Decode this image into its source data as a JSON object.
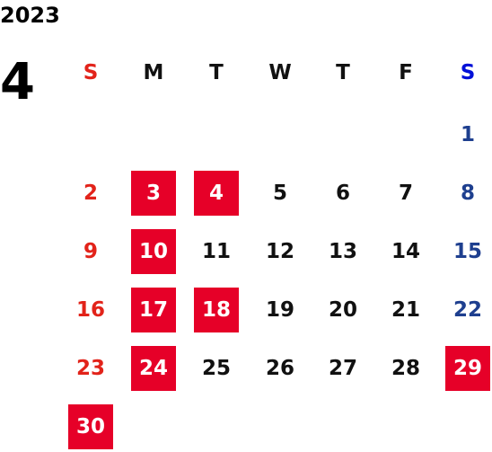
{
  "year": "2023",
  "month": "4",
  "colors": {
    "sunday": "#e2231a",
    "saturday": "#1e3f8f",
    "saturday_header": "#0010d8",
    "weekday": "#111111",
    "holiday_bg": "#e60028",
    "holiday_text": "#ffffff"
  },
  "weekdays": [
    "S",
    "M",
    "T",
    "W",
    "T",
    "F",
    "S"
  ],
  "weeks": [
    [
      null,
      null,
      null,
      null,
      null,
      null,
      {
        "d": "1"
      }
    ],
    [
      {
        "d": "2"
      },
      {
        "d": "3",
        "hl": true
      },
      {
        "d": "4",
        "hl": true
      },
      {
        "d": "5"
      },
      {
        "d": "6"
      },
      {
        "d": "7"
      },
      {
        "d": "8"
      }
    ],
    [
      {
        "d": "9"
      },
      {
        "d": "10",
        "hl": true
      },
      {
        "d": "11"
      },
      {
        "d": "12"
      },
      {
        "d": "13"
      },
      {
        "d": "14"
      },
      {
        "d": "15"
      }
    ],
    [
      {
        "d": "16"
      },
      {
        "d": "17",
        "hl": true
      },
      {
        "d": "18",
        "hl": true
      },
      {
        "d": "19"
      },
      {
        "d": "20"
      },
      {
        "d": "21"
      },
      {
        "d": "22"
      }
    ],
    [
      {
        "d": "23"
      },
      {
        "d": "24",
        "hl": true
      },
      {
        "d": "25"
      },
      {
        "d": "26"
      },
      {
        "d": "27"
      },
      {
        "d": "28"
      },
      {
        "d": "29",
        "hl": true
      }
    ],
    [
      {
        "d": "30",
        "hl": true
      },
      null,
      null,
      null,
      null,
      null,
      null
    ]
  ]
}
